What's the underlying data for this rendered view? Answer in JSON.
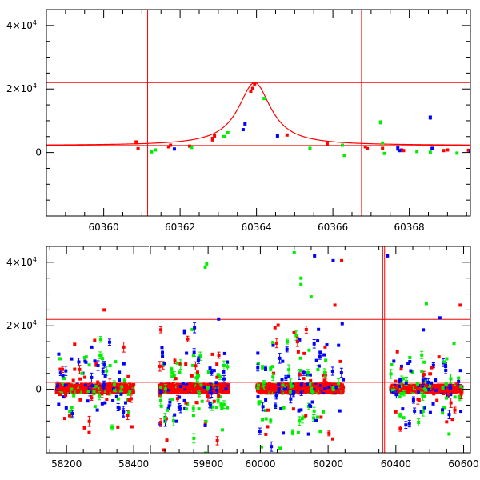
{
  "colors": {
    "red": "#ff0000",
    "green": "#00ee00",
    "blue": "#0000ff",
    "axis": "#000000"
  },
  "chart_data": [
    {
      "type": "scatter",
      "panel": "top",
      "title": "",
      "xlabel": "",
      "ylabel": "",
      "xlim": [
        60358.5,
        60369.6
      ],
      "ylim": [
        -20000,
        45000
      ],
      "xticks": [
        60360,
        60362,
        60364,
        60366,
        60368
      ],
      "yticks": [
        {
          "value": 0,
          "base": "0",
          "exp": ""
        },
        {
          "value": 20000,
          "base": "2×10",
          "exp": "4"
        },
        {
          "value": 40000,
          "base": "4×10",
          "exp": "4"
        }
      ],
      "hlines": [
        22000,
        2200
      ],
      "vlines": [
        60361.15,
        60366.75
      ],
      "model": {
        "baseline": 2200,
        "peak": 22000,
        "t0": 60363.95,
        "width": 0.52
      },
      "series": [
        {
          "color": "red",
          "points": [
            [
              60360.85,
              3200,
              500
            ],
            [
              60360.9,
              1200,
              0
            ],
            [
              60361.7,
              1800,
              0
            ],
            [
              60361.75,
              2300,
              0
            ],
            [
              60362.25,
              2000,
              0
            ],
            [
              60362.85,
              4200,
              600
            ],
            [
              60362.9,
              5200,
              0
            ],
            [
              60363.85,
              19300,
              0
            ],
            [
              60363.9,
              20200,
              0
            ],
            [
              60363.95,
              21600,
              0
            ],
            [
              60364.8,
              5500,
              0
            ],
            [
              60365.85,
              2600,
              500
            ],
            [
              60366.85,
              1800,
              0
            ],
            [
              60366.9,
              1200,
              0
            ],
            [
              60367.3,
              1300,
              0
            ],
            [
              60367.8,
              800,
              0
            ],
            [
              60367.85,
              600,
              0
            ],
            [
              60368.6,
              1200,
              0
            ],
            [
              60368.9,
              600,
              0
            ],
            [
              60369.0,
              800,
              0
            ],
            [
              60369.55,
              700,
              0
            ]
          ]
        },
        {
          "color": "green",
          "points": [
            [
              60361.25,
              200,
              0
            ],
            [
              60361.35,
              800,
              0
            ],
            [
              60362.3,
              1600,
              0
            ],
            [
              60363.15,
              5000,
              0
            ],
            [
              60363.25,
              6200,
              0
            ],
            [
              60364.2,
              17000,
              0
            ],
            [
              60365.4,
              1300,
              0
            ],
            [
              60366.25,
              2300,
              0
            ],
            [
              60366.3,
              -900,
              0
            ],
            [
              60367.25,
              9500,
              500
            ],
            [
              60367.3,
              3000,
              0
            ],
            [
              60367.35,
              -300,
              0
            ],
            [
              60368.2,
              300,
              0
            ],
            [
              60368.55,
              100,
              0
            ],
            [
              60369.25,
              -200,
              0
            ]
          ]
        },
        {
          "color": "blue",
          "points": [
            [
              60361.85,
              1100,
              0
            ],
            [
              60363.65,
              7200,
              0
            ],
            [
              60363.7,
              9000,
              0
            ],
            [
              60364.55,
              5200,
              0
            ],
            [
              60367.7,
              1400,
              700
            ],
            [
              60367.75,
              600,
              0
            ],
            [
              60368.55,
              11000,
              500
            ],
            [
              60368.6,
              1300,
              0
            ],
            [
              60369.6,
              500,
              0
            ]
          ]
        }
      ]
    },
    {
      "type": "scatter",
      "panel": "bottom",
      "title": "",
      "xlabel": "",
      "ylabel": "",
      "ylim": [
        -20000,
        45000
      ],
      "segments": [
        {
          "xlim": [
            58140,
            58445
          ],
          "xticks": [
            58200,
            58400
          ]
        },
        {
          "xlim": [
            59600,
            59905
          ],
          "xticks": [
            59800
          ]
        },
        {
          "xlim": [
            59940,
            60620
          ],
          "xticks": [
            60000,
            60200,
            60400,
            60600
          ]
        }
      ],
      "yticks": [
        {
          "value": 0,
          "base": "0",
          "exp": ""
        },
        {
          "value": 20000,
          "base": "2×10",
          "exp": "4"
        },
        {
          "value": 40000,
          "base": "4×10",
          "exp": "4"
        }
      ],
      "hlines": [
        22000,
        2200
      ],
      "vlines": [
        60361.15,
        60366.75
      ],
      "groups": [
        {
          "segment": 0,
          "x_range": [
            58170,
            58400
          ],
          "core_halfwidth": 1300,
          "scatter_sd": 8000,
          "tail_count": 110
        },
        {
          "segment": 1,
          "x_range": [
            59630,
            59870
          ],
          "core_halfwidth": 1300,
          "scatter_sd": 9000,
          "tail_count": 120
        },
        {
          "segment": 2,
          "x_range": [
            59990,
            60245
          ],
          "core_halfwidth": 1400,
          "scatter_sd": 9500,
          "tail_count": 140
        },
        {
          "segment": 2,
          "x_range": [
            60385,
            60595
          ],
          "core_halfwidth": 1100,
          "scatter_sd": 6500,
          "tail_count": 110
        }
      ],
      "notable_points": [
        {
          "color": "green",
          "x": 59790,
          "y": 38500
        },
        {
          "color": "green",
          "x": 59795,
          "y": 39500
        },
        {
          "color": "green",
          "x": 60100,
          "y": 43000
        },
        {
          "color": "blue",
          "x": 60160,
          "y": 42000
        },
        {
          "color": "blue",
          "x": 60215,
          "y": 40500
        },
        {
          "color": "red",
          "x": 60240,
          "y": 40500
        },
        {
          "color": "blue",
          "x": 60375,
          "y": 42000
        },
        {
          "color": "green",
          "x": 60120,
          "y": 35000
        },
        {
          "color": "green",
          "x": 60120,
          "y": 33000
        },
        {
          "color": "red",
          "x": 60590,
          "y": 26500
        },
        {
          "color": "blue",
          "x": 60530,
          "y": 22500
        },
        {
          "color": "green",
          "x": 60490,
          "y": 27000
        },
        {
          "color": "red",
          "x": 58312,
          "y": 25000
        },
        {
          "color": "red",
          "x": 60220,
          "y": 26500
        }
      ]
    }
  ]
}
